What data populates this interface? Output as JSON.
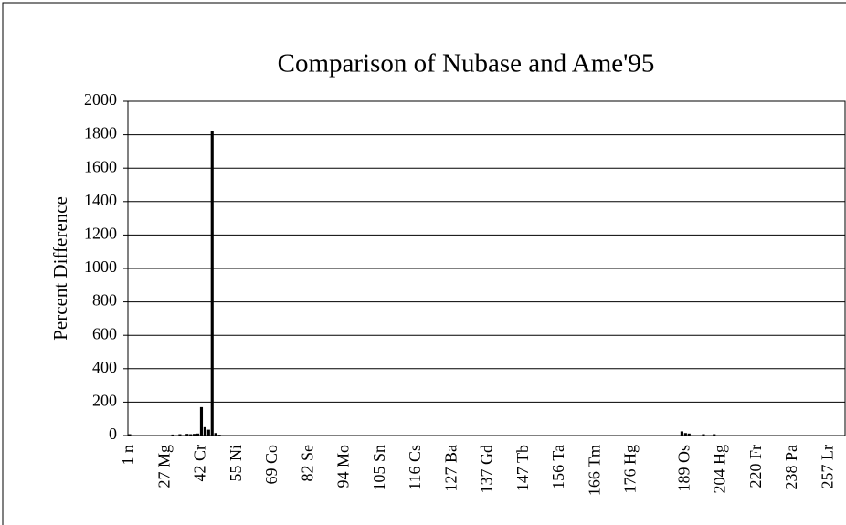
{
  "chart_data": {
    "type": "bar",
    "title": "Comparison of Nubase and Ame'95",
    "y_label": "Percent Difference",
    "categories": [
      "1 n",
      null,
      null,
      null,
      null,
      null,
      null,
      null,
      null,
      null,
      "27 Mg",
      null,
      null,
      null,
      null,
      null,
      null,
      null,
      null,
      null,
      "42 Cr",
      null,
      null,
      null,
      null,
      null,
      null,
      null,
      null,
      null,
      "55 Ni",
      null,
      null,
      null,
      null,
      null,
      null,
      null,
      null,
      null,
      "69 Co",
      null,
      null,
      null,
      null,
      null,
      null,
      null,
      null,
      null,
      "82 Se",
      null,
      null,
      null,
      null,
      null,
      null,
      null,
      null,
      null,
      "94 Mo",
      null,
      null,
      null,
      null,
      null,
      null,
      null,
      null,
      null,
      "105 Sn",
      null,
      null,
      null,
      null,
      null,
      null,
      null,
      null,
      null,
      "116 Cs",
      null,
      null,
      null,
      null,
      null,
      null,
      null,
      null,
      null,
      "127 Ba",
      null,
      null,
      null,
      null,
      null,
      null,
      null,
      null,
      null,
      "137 Gd",
      null,
      null,
      null,
      null,
      null,
      null,
      null,
      null,
      null,
      "147 Tb",
      null,
      null,
      null,
      null,
      null,
      null,
      null,
      null,
      null,
      "156 Ta",
      null,
      null,
      null,
      null,
      null,
      null,
      null,
      null,
      null,
      "166 Tm",
      null,
      null,
      null,
      null,
      null,
      null,
      null,
      null,
      null,
      "176 Hg",
      null,
      null,
      null,
      null,
      null,
      null,
      null,
      null,
      null,
      null,
      null,
      null,
      null,
      null,
      "189 Os",
      null,
      null,
      null,
      null,
      null,
      null,
      null,
      null,
      null,
      "204 Hg",
      null,
      null,
      null,
      null,
      null,
      null,
      null,
      null,
      null,
      "220 Fr",
      null,
      null,
      null,
      null,
      null,
      null,
      null,
      null,
      null,
      "238 Pa",
      null,
      null,
      null,
      null,
      null,
      null,
      null,
      null,
      null,
      "257 Lr",
      null,
      null,
      null,
      null
    ],
    "values": [
      8,
      2,
      2,
      2,
      2,
      2,
      2,
      2,
      2,
      2,
      2,
      2,
      6,
      2,
      8,
      2,
      10,
      8,
      10,
      12,
      170,
      50,
      35,
      1820,
      15,
      5,
      2,
      2,
      2,
      2,
      2,
      2,
      2,
      2,
      2,
      2,
      2,
      2,
      2,
      2,
      2,
      2,
      2,
      2,
      2,
      2,
      2,
      2,
      2,
      2,
      2,
      2,
      2,
      2,
      2,
      2,
      2,
      2,
      2,
      2,
      2,
      2,
      2,
      2,
      2,
      2,
      2,
      2,
      2,
      2,
      2,
      2,
      2,
      2,
      2,
      2,
      2,
      2,
      2,
      2,
      2,
      2,
      2,
      2,
      2,
      2,
      2,
      2,
      2,
      2,
      2,
      2,
      2,
      2,
      2,
      2,
      2,
      2,
      2,
      2,
      2,
      2,
      2,
      2,
      2,
      2,
      2,
      2,
      2,
      2,
      2,
      2,
      2,
      2,
      2,
      2,
      2,
      2,
      2,
      2,
      2,
      2,
      2,
      2,
      2,
      2,
      2,
      2,
      2,
      2,
      2,
      2,
      2,
      2,
      2,
      2,
      2,
      2,
      2,
      2,
      2,
      2,
      2,
      2,
      2,
      2,
      2,
      2,
      2,
      2,
      2,
      2,
      2,
      2,
      25,
      15,
      12,
      2,
      2,
      2,
      8,
      2,
      2,
      8,
      2,
      2,
      2,
      2,
      2,
      2,
      2,
      2,
      2,
      2,
      2,
      2,
      2,
      2,
      2,
      2,
      2,
      2,
      2,
      2,
      2,
      2,
      2,
      2,
      2,
      2,
      2,
      2,
      2,
      2,
      2,
      2,
      2,
      2,
      2,
      2
    ],
    "color": "#000000",
    "ylim": [
      0,
      2000
    ],
    "yticks": [
      0,
      200,
      400,
      600,
      800,
      1000,
      1200,
      1400,
      1600,
      1800,
      2000
    ],
    "grid": true
  }
}
